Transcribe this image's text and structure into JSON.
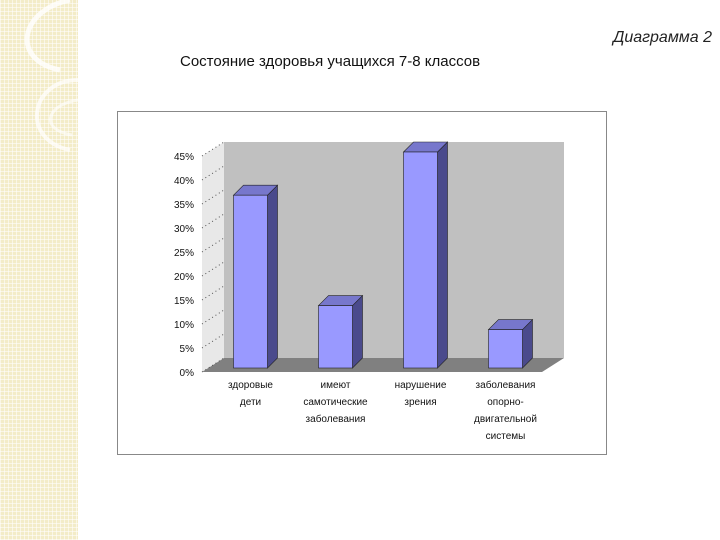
{
  "slide": {
    "caption": "Диаграмма 2",
    "title": "Состояние здоровья учащихся 7-8 классов"
  },
  "colors": {
    "bar_front": "#9999ff",
    "bar_side": "#4a4a8c",
    "bar_top": "#7777cc",
    "wall": "#c0c0c0",
    "floor": "#808080",
    "strip": "#f3ecc8"
  },
  "chart_data": {
    "type": "bar",
    "categories": [
      [
        "здоровые",
        "дети"
      ],
      [
        "имеют",
        "самотические",
        "заболевания"
      ],
      [
        "нарушение",
        "зрения"
      ],
      [
        "заболевания",
        "опорно-",
        "двигательной",
        "системы"
      ]
    ],
    "values": [
      36,
      13,
      45,
      8
    ],
    "ylim": [
      0,
      45
    ],
    "yticks": [
      "0%",
      "5%",
      "10%",
      "15%",
      "20%",
      "25%",
      "30%",
      "35%",
      "40%",
      "45%"
    ],
    "three_d": true,
    "legend": "none"
  }
}
